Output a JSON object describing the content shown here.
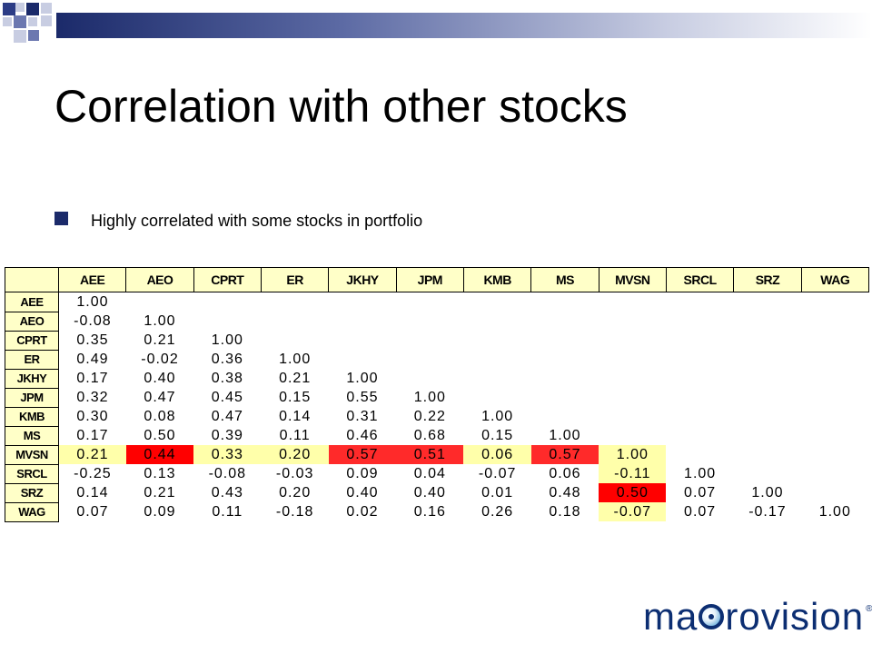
{
  "slide": {
    "title": "Correlation with other stocks",
    "bullet": "Highly correlated with some stocks in portfolio"
  },
  "table": {
    "columns": [
      "AEE",
      "AEO",
      "CPRT",
      "ER",
      "JKHY",
      "JPM",
      "KMB",
      "MS",
      "MVSN",
      "SRCL",
      "SRZ",
      "WAG"
    ],
    "rows": [
      {
        "label": "AEE",
        "cells": [
          "1.00"
        ]
      },
      {
        "label": "AEO",
        "cells": [
          "-0.08",
          "1.00"
        ]
      },
      {
        "label": "CPRT",
        "cells": [
          "0.35",
          "0.21",
          "1.00"
        ]
      },
      {
        "label": "ER",
        "cells": [
          "0.49",
          "-0.02",
          "0.36",
          "1.00"
        ]
      },
      {
        "label": "JKHY",
        "cells": [
          "0.17",
          "0.40",
          "0.38",
          "0.21",
          "1.00"
        ]
      },
      {
        "label": "JPM",
        "cells": [
          "0.32",
          "0.47",
          "0.45",
          "0.15",
          "0.55",
          "1.00"
        ]
      },
      {
        "label": "KMB",
        "cells": [
          "0.30",
          "0.08",
          "0.47",
          "0.14",
          "0.31",
          "0.22",
          "1.00"
        ]
      },
      {
        "label": "MS",
        "cells": [
          "0.17",
          "0.50",
          "0.39",
          "0.11",
          "0.46",
          "0.68",
          "0.15",
          "1.00"
        ]
      },
      {
        "label": "MVSN",
        "cells": [
          "0.21",
          "0.44",
          "0.33",
          "0.20",
          "0.57",
          "0.51",
          "0.06",
          "0.57",
          "1.00"
        ]
      },
      {
        "label": "SRCL",
        "cells": [
          "-0.25",
          "0.13",
          "-0.08",
          "-0.03",
          "0.09",
          "0.04",
          "-0.07",
          "0.06",
          "-0.11",
          "1.00"
        ]
      },
      {
        "label": "SRZ",
        "cells": [
          "0.14",
          "0.21",
          "0.43",
          "0.20",
          "0.40",
          "0.40",
          "0.01",
          "0.48",
          "0.50",
          "0.07",
          "1.00"
        ]
      },
      {
        "label": "WAG",
        "cells": [
          "0.07",
          "0.09",
          "0.11",
          "-0.18",
          "0.02",
          "0.16",
          "0.26",
          "0.18",
          "-0.07",
          "0.07",
          "-0.17",
          "1.00"
        ]
      }
    ]
  },
  "logo": {
    "before": "ma",
    "after": "rovision",
    "reg": "®"
  },
  "colors": {
    "accent": "#1b2a6a",
    "highlight_yellow": "#ffffaa",
    "highlight_red": "#ff2a2a",
    "logo_blue": "#0c2e72"
  }
}
